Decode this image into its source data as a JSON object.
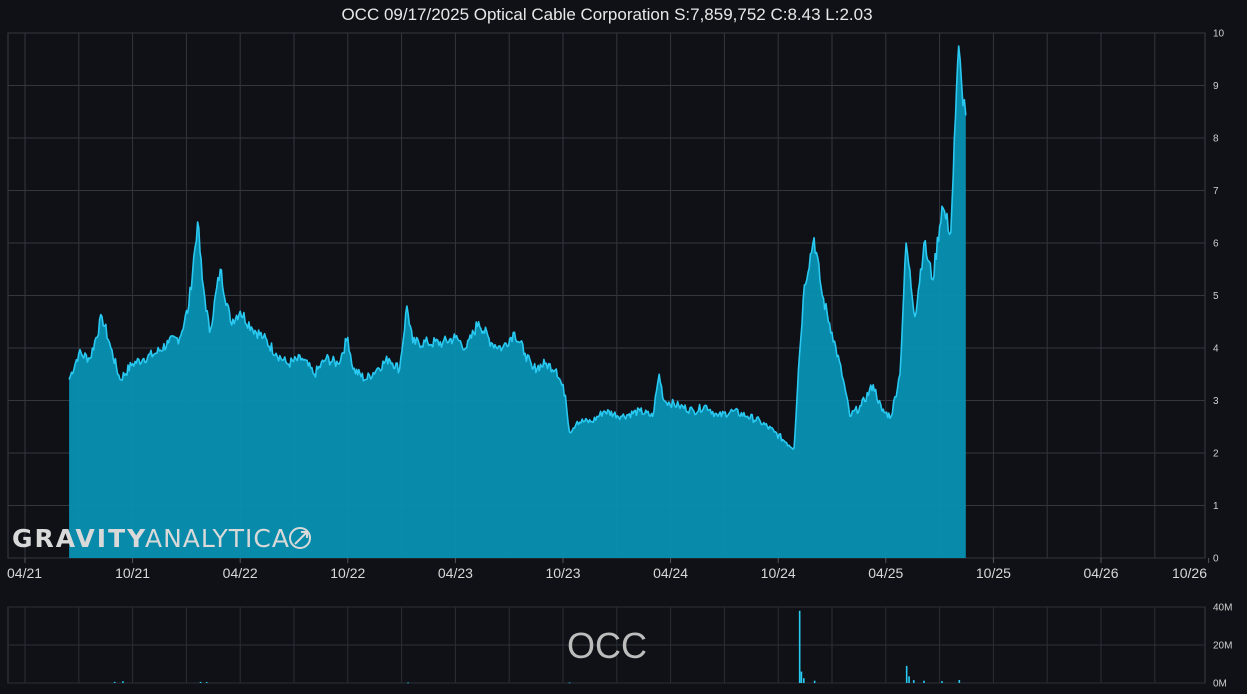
{
  "chart_data": [
    {
      "type": "area",
      "title": "OCC 09/17/2025 Optical Cable Corporation S:7,859,752 C:8.43 L:2.03",
      "series": [
        {
          "values_x_y": [
            [
              "2021-06-15",
              3.4
            ],
            [
              "2021-07-01",
              3.9
            ],
            [
              "2021-07-20",
              3.8
            ],
            [
              "2021-08-10",
              4.6
            ],
            [
              "2021-08-25",
              4.0
            ],
            [
              "2021-09-10",
              3.4
            ],
            [
              "2021-10-01",
              3.7
            ],
            [
              "2021-10-20",
              3.8
            ],
            [
              "2021-11-10",
              3.9
            ],
            [
              "2021-12-01",
              4.1
            ],
            [
              "2021-12-20",
              4.2
            ],
            [
              "2022-01-05",
              4.8
            ],
            [
              "2022-01-20",
              6.4
            ],
            [
              "2022-01-28",
              5.3
            ],
            [
              "2022-02-10",
              4.3
            ],
            [
              "2022-02-28",
              5.5
            ],
            [
              "2022-03-15",
              4.5
            ],
            [
              "2022-04-01",
              4.7
            ],
            [
              "2022-04-20",
              4.4
            ],
            [
              "2022-05-10",
              4.2
            ],
            [
              "2022-06-01",
              3.9
            ],
            [
              "2022-06-20",
              3.7
            ],
            [
              "2022-07-15",
              3.8
            ],
            [
              "2022-08-05",
              3.5
            ],
            [
              "2022-08-25",
              3.8
            ],
            [
              "2022-09-15",
              3.7
            ],
            [
              "2022-10-01",
              4.2
            ],
            [
              "2022-10-10",
              3.6
            ],
            [
              "2022-11-01",
              3.4
            ],
            [
              "2022-11-20",
              3.6
            ],
            [
              "2022-12-10",
              3.8
            ],
            [
              "2022-12-28",
              3.6
            ],
            [
              "2023-01-10",
              4.8
            ],
            [
              "2023-01-20",
              4.1
            ],
            [
              "2023-02-15",
              4.1
            ],
            [
              "2023-03-10",
              4.1
            ],
            [
              "2023-04-01",
              4.2
            ],
            [
              "2023-04-20",
              4.0
            ],
            [
              "2023-05-10",
              4.5
            ],
            [
              "2023-06-01",
              4.1
            ],
            [
              "2023-06-20",
              4.0
            ],
            [
              "2023-07-10",
              4.3
            ],
            [
              "2023-07-28",
              3.9
            ],
            [
              "2023-08-10",
              3.6
            ],
            [
              "2023-09-01",
              3.7
            ],
            [
              "2023-09-20",
              3.6
            ],
            [
              "2023-10-05",
              3.1
            ],
            [
              "2023-10-12",
              2.4
            ],
            [
              "2023-10-25",
              2.6
            ],
            [
              "2023-11-20",
              2.6
            ],
            [
              "2023-12-10",
              2.8
            ],
            [
              "2024-01-10",
              2.7
            ],
            [
              "2024-02-10",
              2.8
            ],
            [
              "2024-03-01",
              2.7
            ],
            [
              "2024-03-12",
              3.5
            ],
            [
              "2024-03-20",
              3.0
            ],
            [
              "2024-04-15",
              2.9
            ],
            [
              "2024-05-10",
              2.8
            ],
            [
              "2024-06-01",
              2.9
            ],
            [
              "2024-06-20",
              2.7
            ],
            [
              "2024-07-15",
              2.8
            ],
            [
              "2024-08-10",
              2.7
            ],
            [
              "2024-09-01",
              2.6
            ],
            [
              "2024-09-25",
              2.4
            ],
            [
              "2024-10-15",
              2.2
            ],
            [
              "2024-10-28",
              2.1
            ],
            [
              "2024-11-05",
              3.6
            ],
            [
              "2024-11-15",
              5.2
            ],
            [
              "2024-12-01",
              6.1
            ],
            [
              "2024-12-15",
              5.0
            ],
            [
              "2025-01-01",
              4.3
            ],
            [
              "2025-01-20",
              3.4
            ],
            [
              "2025-02-01",
              2.7
            ],
            [
              "2025-02-20",
              2.9
            ],
            [
              "2025-03-10",
              3.3
            ],
            [
              "2025-03-25",
              2.8
            ],
            [
              "2025-04-10",
              2.7
            ],
            [
              "2025-04-25",
              3.5
            ],
            [
              "2025-05-05",
              6.0
            ],
            [
              "2025-05-20",
              4.6
            ],
            [
              "2025-06-05",
              6.0
            ],
            [
              "2025-06-20",
              5.3
            ],
            [
              "2025-07-05",
              6.7
            ],
            [
              "2025-07-20",
              6.2
            ],
            [
              "2025-07-28",
              8.4
            ],
            [
              "2025-08-03",
              9.75
            ],
            [
              "2025-08-08",
              9.0
            ],
            [
              "2025-08-15",
              8.43
            ]
          ],
          "color": "#29c9f2",
          "fill": "#0891b2"
        }
      ],
      "x_ticks": [
        "04/21",
        "10/21",
        "04/22",
        "10/22",
        "04/23",
        "10/23",
        "04/24",
        "10/24",
        "04/25",
        "10/25",
        "04/26",
        "10/26"
      ],
      "y_ticks": [
        "0",
        "1",
        "2",
        "3",
        "4",
        "5",
        "6",
        "7",
        "8",
        "9",
        "10"
      ],
      "ylim": [
        0,
        10
      ],
      "y_axis_side": "right",
      "grid": true,
      "background": "#0f1117"
    },
    {
      "type": "bar",
      "panel_label": "OCC",
      "series": [
        {
          "values_x_y": [
            [
              "2021-09-01",
              0.6
            ],
            [
              "2021-09-15",
              0.9
            ],
            [
              "2022-01-25",
              0.6
            ],
            [
              "2022-02-05",
              0.5
            ],
            [
              "2023-01-12",
              0.3
            ],
            [
              "2023-10-12",
              0.3
            ],
            [
              "2024-11-07",
              38
            ],
            [
              "2024-11-10",
              6
            ],
            [
              "2024-11-14",
              2.5
            ],
            [
              "2024-12-02",
              1.2
            ],
            [
              "2025-05-06",
              9
            ],
            [
              "2025-05-10",
              3.5
            ],
            [
              "2025-05-18",
              1.5
            ],
            [
              "2025-06-05",
              1.2
            ],
            [
              "2025-07-05",
              1.0
            ],
            [
              "2025-08-04",
              1.6
            ]
          ],
          "color": "#29c9f2"
        }
      ],
      "y_ticks": [
        "0M",
        "20M",
        "40M"
      ],
      "ylim": [
        0,
        40
      ],
      "y_axis_side": "right",
      "grid": true
    }
  ],
  "watermark": {
    "text_bold": "GRAVITY",
    "text_light": "ANALYTICA",
    "icon": "rocket-icon"
  }
}
